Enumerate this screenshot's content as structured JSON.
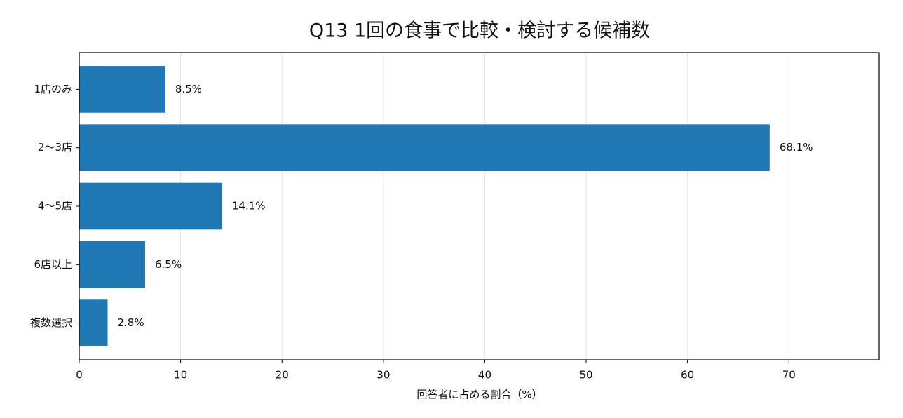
{
  "chart_data": {
    "type": "barh",
    "title": "Q13 1回の食事で比較・検討する候補数",
    "xlabel": "回答者に占める割合（%）",
    "categories": [
      "1店のみ",
      "2〜3店",
      "4〜5店",
      "6店以上",
      "複数選択"
    ],
    "values": [
      8.5,
      68.1,
      14.1,
      6.5,
      2.8
    ],
    "value_labels": [
      "8.5%",
      "68.1%",
      "14.1%",
      "6.5%",
      "2.8%"
    ],
    "color": "#1f77b4",
    "xlim": [
      0,
      78.9
    ],
    "xticks": [
      0,
      10,
      20,
      30,
      40,
      50,
      60,
      70
    ],
    "grid": true
  }
}
